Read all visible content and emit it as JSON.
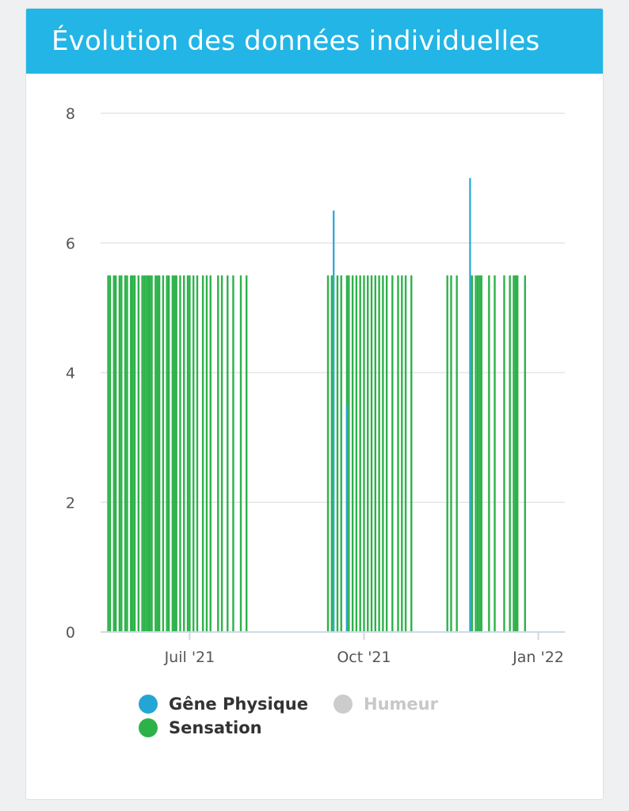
{
  "header": {
    "title": "Évolution des données individuelles"
  },
  "chart_data": {
    "type": "bar",
    "title": "Évolution des données individuelles",
    "xlabel": "",
    "ylabel": "",
    "ylim": [
      0,
      8
    ],
    "y_ticks": [
      0,
      2,
      4,
      6,
      8
    ],
    "x_range": [
      "2021-05-15",
      "2022-01-15"
    ],
    "x_ticks": [
      {
        "date": "2021-07-01",
        "label": "Juil '21"
      },
      {
        "date": "2021-10-01",
        "label": "Oct '21"
      },
      {
        "date": "2022-01-01",
        "label": "Jan '22"
      }
    ],
    "grid": true,
    "legend_placement": "bottom",
    "series": [
      {
        "name": "Gêne Physique",
        "color": "#23a6d5",
        "visible": true,
        "points": [
          {
            "date": "2021-09-15",
            "value": 6.5
          },
          {
            "date": "2021-09-22",
            "value": 3.5
          },
          {
            "date": "2021-11-26",
            "value": 7
          }
        ]
      },
      {
        "name": "Sensation",
        "color": "#2db24a",
        "visible": true,
        "value": 5.5,
        "dates": [
          "2021-05-19",
          "2021-05-20",
          "2021-05-22",
          "2021-05-23",
          "2021-05-25",
          "2021-05-26",
          "2021-05-28",
          "2021-05-29",
          "2021-05-31",
          "2021-06-01",
          "2021-06-02",
          "2021-06-04",
          "2021-06-06",
          "2021-06-07",
          "2021-06-08",
          "2021-06-09",
          "2021-06-10",
          "2021-06-11",
          "2021-06-13",
          "2021-06-14",
          "2021-06-15",
          "2021-06-17",
          "2021-06-19",
          "2021-06-20",
          "2021-06-22",
          "2021-06-23",
          "2021-06-24",
          "2021-06-26",
          "2021-06-28",
          "2021-06-30",
          "2021-07-01",
          "2021-07-03",
          "2021-07-05",
          "2021-07-08",
          "2021-07-10",
          "2021-07-12",
          "2021-07-16",
          "2021-07-18",
          "2021-07-21",
          "2021-07-24",
          "2021-07-28",
          "2021-07-31",
          "2021-09-12",
          "2021-09-14",
          "2021-09-17",
          "2021-09-19",
          "2021-09-22",
          "2021-09-23",
          "2021-09-25",
          "2021-09-27",
          "2021-09-29",
          "2021-10-01",
          "2021-10-03",
          "2021-10-05",
          "2021-10-07",
          "2021-10-09",
          "2021-10-11",
          "2021-10-13",
          "2021-10-16",
          "2021-10-19",
          "2021-10-21",
          "2021-10-23",
          "2021-10-26",
          "2021-11-14",
          "2021-11-16",
          "2021-11-19",
          "2021-11-27",
          "2021-11-29",
          "2021-11-30",
          "2021-12-01",
          "2021-12-02",
          "2021-12-06",
          "2021-12-09",
          "2021-12-14",
          "2021-12-17",
          "2021-12-19",
          "2021-12-20",
          "2021-12-21",
          "2021-12-25"
        ]
      },
      {
        "name": "Humeur",
        "color": "#cccccc",
        "visible": false
      }
    ]
  },
  "legend": [
    {
      "label": "Gêne Physique",
      "color": "#23a6d5",
      "active": true
    },
    {
      "label": "Humeur",
      "color": "#cccccc",
      "active": false
    },
    {
      "label": "Sensation",
      "color": "#2db24a",
      "active": true
    }
  ]
}
